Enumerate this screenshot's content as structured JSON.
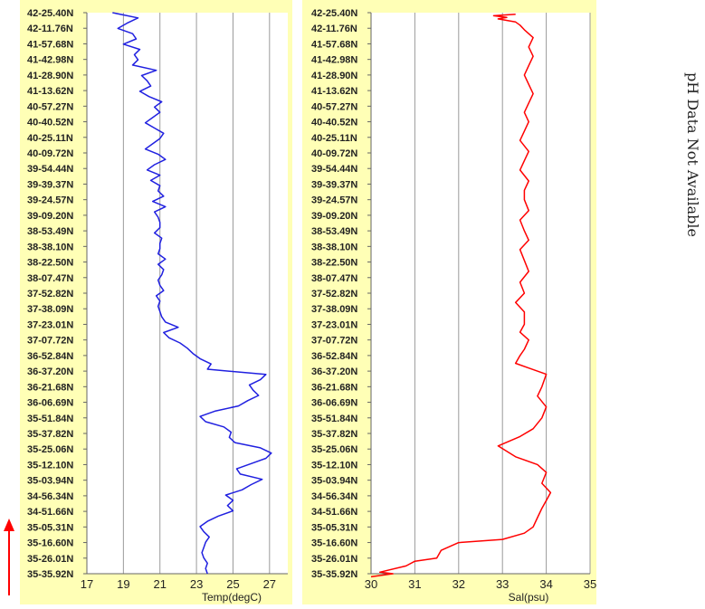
{
  "side_note": "pH Data Not Available",
  "latitude_ticks": [
    "42-25.40N",
    "42-11.76N",
    "41-57.68N",
    "41-42.98N",
    "41-28.90N",
    "41-13.62N",
    "40-57.27N",
    "40-40.52N",
    "40-25.11N",
    "40-09.72N",
    "39-54.44N",
    "39-39.37N",
    "39-24.57N",
    "39-09.20N",
    "38-53.49N",
    "38-38.10N",
    "38-22.50N",
    "38-07.47N",
    "37-52.82N",
    "37-38.09N",
    "37-23.01N",
    "37-07.72N",
    "36-52.84N",
    "36-37.20N",
    "36-21.68N",
    "36-06.69N",
    "35-51.84N",
    "35-37.82N",
    "35-25.06N",
    "35-12.10N",
    "35-03.94N",
    "34-56.34N",
    "34-51.66N",
    "35-05.31N",
    "35-16.60N",
    "35-26.01N",
    "35-35.92N"
  ],
  "chart_data": [
    {
      "type": "line",
      "xlabel": "Temp(degC)",
      "xlim": [
        17,
        28
      ],
      "xticks": [
        17,
        19,
        21,
        23,
        25,
        27
      ],
      "color": "#2020e0",
      "grid": true,
      "x": [
        23.6,
        23.5,
        23.6,
        23.4,
        23.3,
        23.4,
        23.5,
        23.7,
        23.4,
        23.2,
        23.6,
        24.2,
        25.0,
        24.7,
        25.0,
        24.6,
        25.5,
        26.0,
        26.6,
        25.4,
        25.2,
        26.0,
        26.8,
        27.1,
        26.5,
        25.1,
        24.8,
        24.9,
        24.5,
        23.5,
        23.2,
        24.0,
        25.3,
        25.8,
        26.4,
        26.1,
        25.9,
        26.5,
        26.8,
        23.6,
        23.8,
        23.2,
        22.8,
        22.5,
        22.1,
        21.5,
        21.2,
        22.0,
        21.3,
        21.1,
        21.0,
        20.9,
        21.0,
        20.8,
        21.2,
        21.0,
        20.9,
        21.1,
        21.2,
        20.9,
        21.3,
        20.9,
        21.0,
        21.0,
        21.1,
        20.7,
        21.0,
        21.0,
        20.9,
        20.7,
        21.3,
        20.6,
        21.2,
        20.9,
        21.0,
        20.5,
        21.0,
        20.3,
        20.7,
        21.3,
        20.9,
        20.2,
        20.6,
        21.0,
        21.2,
        20.7,
        20.2,
        20.6,
        21.0,
        20.7,
        21.1,
        20.4,
        19.9,
        20.5,
        20.3,
        20.0,
        20.8,
        19.5,
        19.8,
        19.6,
        19.9,
        19.0,
        19.7,
        19.5,
        18.7,
        19.2,
        19.8,
        18.4
      ],
      "y_index": [
        0,
        0.5,
        1,
        1.5,
        2,
        2.5,
        3,
        3.5,
        4,
        4.5,
        5,
        5.5,
        6,
        6.5,
        7,
        7.5,
        8,
        8.5,
        9,
        9.5,
        10,
        10.5,
        11,
        11.5,
        12,
        12.5,
        13,
        13.5,
        14,
        14.5,
        15,
        15.5,
        16,
        16.5,
        17,
        17.5,
        18,
        18.5,
        19,
        19.5,
        20,
        20.5,
        21,
        21.5,
        22,
        22.5,
        23,
        23.5,
        24,
        24.5,
        25,
        25.5,
        26,
        26.5,
        27,
        27.5,
        28,
        28.5,
        29,
        29.5,
        30,
        30.5,
        31,
        31.5,
        32,
        32.5,
        33,
        33.5,
        34,
        34.5,
        35,
        35.5,
        36,
        36.5,
        37,
        37.5,
        38,
        38.5,
        39,
        39.5,
        40,
        40.5,
        41,
        41.5,
        42,
        42.5,
        43,
        43.5,
        44,
        44.5,
        45,
        45.5,
        46,
        46.5,
        47,
        47.5,
        48,
        48.5,
        49,
        49.5,
        50,
        50.5,
        51,
        51.5,
        52,
        52.5,
        53,
        53.5
      ]
    },
    {
      "type": "line",
      "xlabel": "Sal(psu)",
      "xlim": [
        30,
        35
      ],
      "xticks": [
        30,
        31,
        32,
        33,
        34,
        35
      ],
      "color": "#ff0000",
      "grid": true,
      "x": [
        30.0,
        30.5,
        30.2,
        30.8,
        31.0,
        31.5,
        31.6,
        32.0,
        33.0,
        33.5,
        33.7,
        33.8,
        33.9,
        34.0,
        34.1,
        33.9,
        34.0,
        33.8,
        33.3,
        32.9,
        33.4,
        33.7,
        33.9,
        34.0,
        33.8,
        33.9,
        34.0,
        33.6,
        33.3,
        33.4,
        33.5,
        33.6,
        33.4,
        33.5,
        33.5,
        33.3,
        33.5,
        33.4,
        33.6,
        33.5,
        33.4,
        33.6,
        33.5,
        33.4,
        33.6,
        33.5,
        33.5,
        33.6,
        33.4,
        33.5,
        33.6,
        33.4,
        33.5,
        33.6,
        33.5,
        33.6,
        33.7,
        33.6,
        33.5,
        33.6,
        33.7,
        33.6,
        33.7,
        33.5,
        33.4,
        33.3,
        32.9,
        33.1,
        32.8,
        33.3
      ],
      "y_index": [
        36.2,
        36,
        35.9,
        35.5,
        35.2,
        35,
        34.5,
        34,
        33.8,
        33.4,
        33.0,
        32.4,
        31.8,
        31.3,
        30.8,
        30.2,
        29.5,
        29.0,
        28.5,
        27.8,
        27.2,
        26.7,
        26.0,
        25.3,
        24.6,
        24.0,
        23.2,
        22.8,
        22.5,
        22.0,
        21.6,
        21.0,
        20.5,
        20.0,
        19.2,
        18.6,
        18.0,
        17.3,
        16.6,
        15.9,
        15.2,
        14.6,
        14.0,
        13.3,
        12.7,
        12.0,
        11.4,
        10.8,
        10.1,
        9.5,
        8.9,
        8.2,
        7.6,
        7.0,
        6.4,
        5.8,
        5.2,
        4.6,
        4.0,
        3.4,
        2.8,
        2.2,
        1.6,
        1.1,
        0.8,
        0.6,
        0.4,
        0.3,
        0.2,
        0.1
      ]
    }
  ]
}
